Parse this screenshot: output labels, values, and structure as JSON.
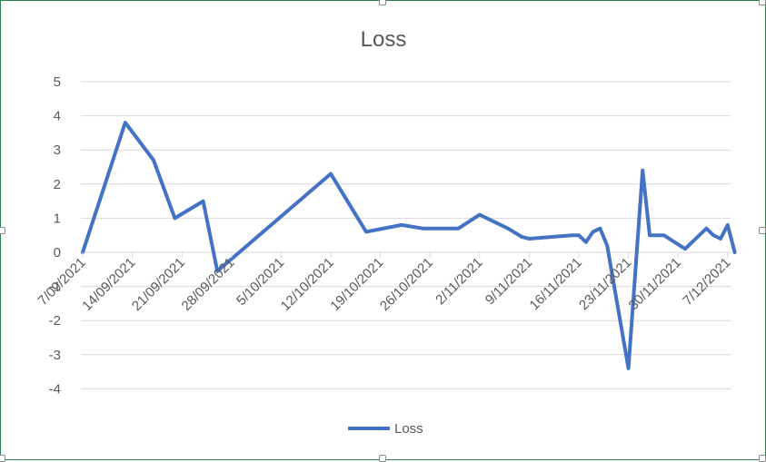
{
  "chart_data": {
    "type": "line",
    "title": "Loss",
    "xlabel": "",
    "ylabel": "",
    "ylim": [
      -5,
      5
    ],
    "ytick_values": [
      5,
      4,
      3,
      2,
      1,
      0,
      -1,
      -2,
      -3,
      -4
    ],
    "ytick_labels": [
      "5",
      "4",
      "3",
      "2",
      "1",
      "0",
      "-1",
      "-2",
      "-3",
      "-4"
    ],
    "x_axis_type": "date",
    "x_range": [
      "2021-09-07",
      "2021-12-07"
    ],
    "x_tick_dates": [
      "2021-09-07",
      "2021-09-14",
      "2021-09-21",
      "2021-09-28",
      "2021-10-05",
      "2021-10-12",
      "2021-10-19",
      "2021-10-26",
      "2021-11-02",
      "2021-11-09",
      "2021-11-16",
      "2021-11-23",
      "2021-11-30",
      "2021-12-07"
    ],
    "x_tick_labels": [
      "7/09/2021",
      "14/09/2021",
      "21/09/2021",
      "28/09/2021",
      "5/10/2021",
      "12/10/2021",
      "19/10/2021",
      "26/10/2021",
      "2/11/2021",
      "9/11/2021",
      "16/11/2021",
      "23/11/2021",
      "30/11/2021",
      "7/12/2021"
    ],
    "legend_position": "bottom",
    "grid": true,
    "series": [
      {
        "name": "Loss",
        "color": "#4472c4",
        "x": [
          "2021-09-07",
          "2021-09-13",
          "2021-09-17",
          "2021-09-20",
          "2021-09-24",
          "2021-09-26",
          "2021-10-12",
          "2021-10-17",
          "2021-10-22",
          "2021-10-25",
          "2021-10-30",
          "2021-11-02",
          "2021-11-06",
          "2021-11-08",
          "2021-11-09",
          "2021-11-15",
          "2021-11-16",
          "2021-11-17",
          "2021-11-18",
          "2021-11-19",
          "2021-11-20",
          "2021-11-23",
          "2021-11-25",
          "2021-11-26",
          "2021-11-27",
          "2021-11-28",
          "2021-12-01",
          "2021-12-04",
          "2021-12-05",
          "2021-12-06",
          "2021-12-07",
          "2021-12-08"
        ],
        "y": [
          0.0,
          3.8,
          2.7,
          1.0,
          1.5,
          -0.55,
          2.3,
          0.6,
          0.8,
          0.7,
          0.7,
          1.1,
          0.7,
          0.45,
          0.4,
          0.5,
          0.5,
          0.3,
          0.6,
          0.7,
          0.2,
          -3.4,
          2.4,
          0.5,
          0.5,
          0.5,
          0.1,
          0.7,
          0.5,
          0.4,
          0.8,
          0.0
        ]
      }
    ]
  }
}
